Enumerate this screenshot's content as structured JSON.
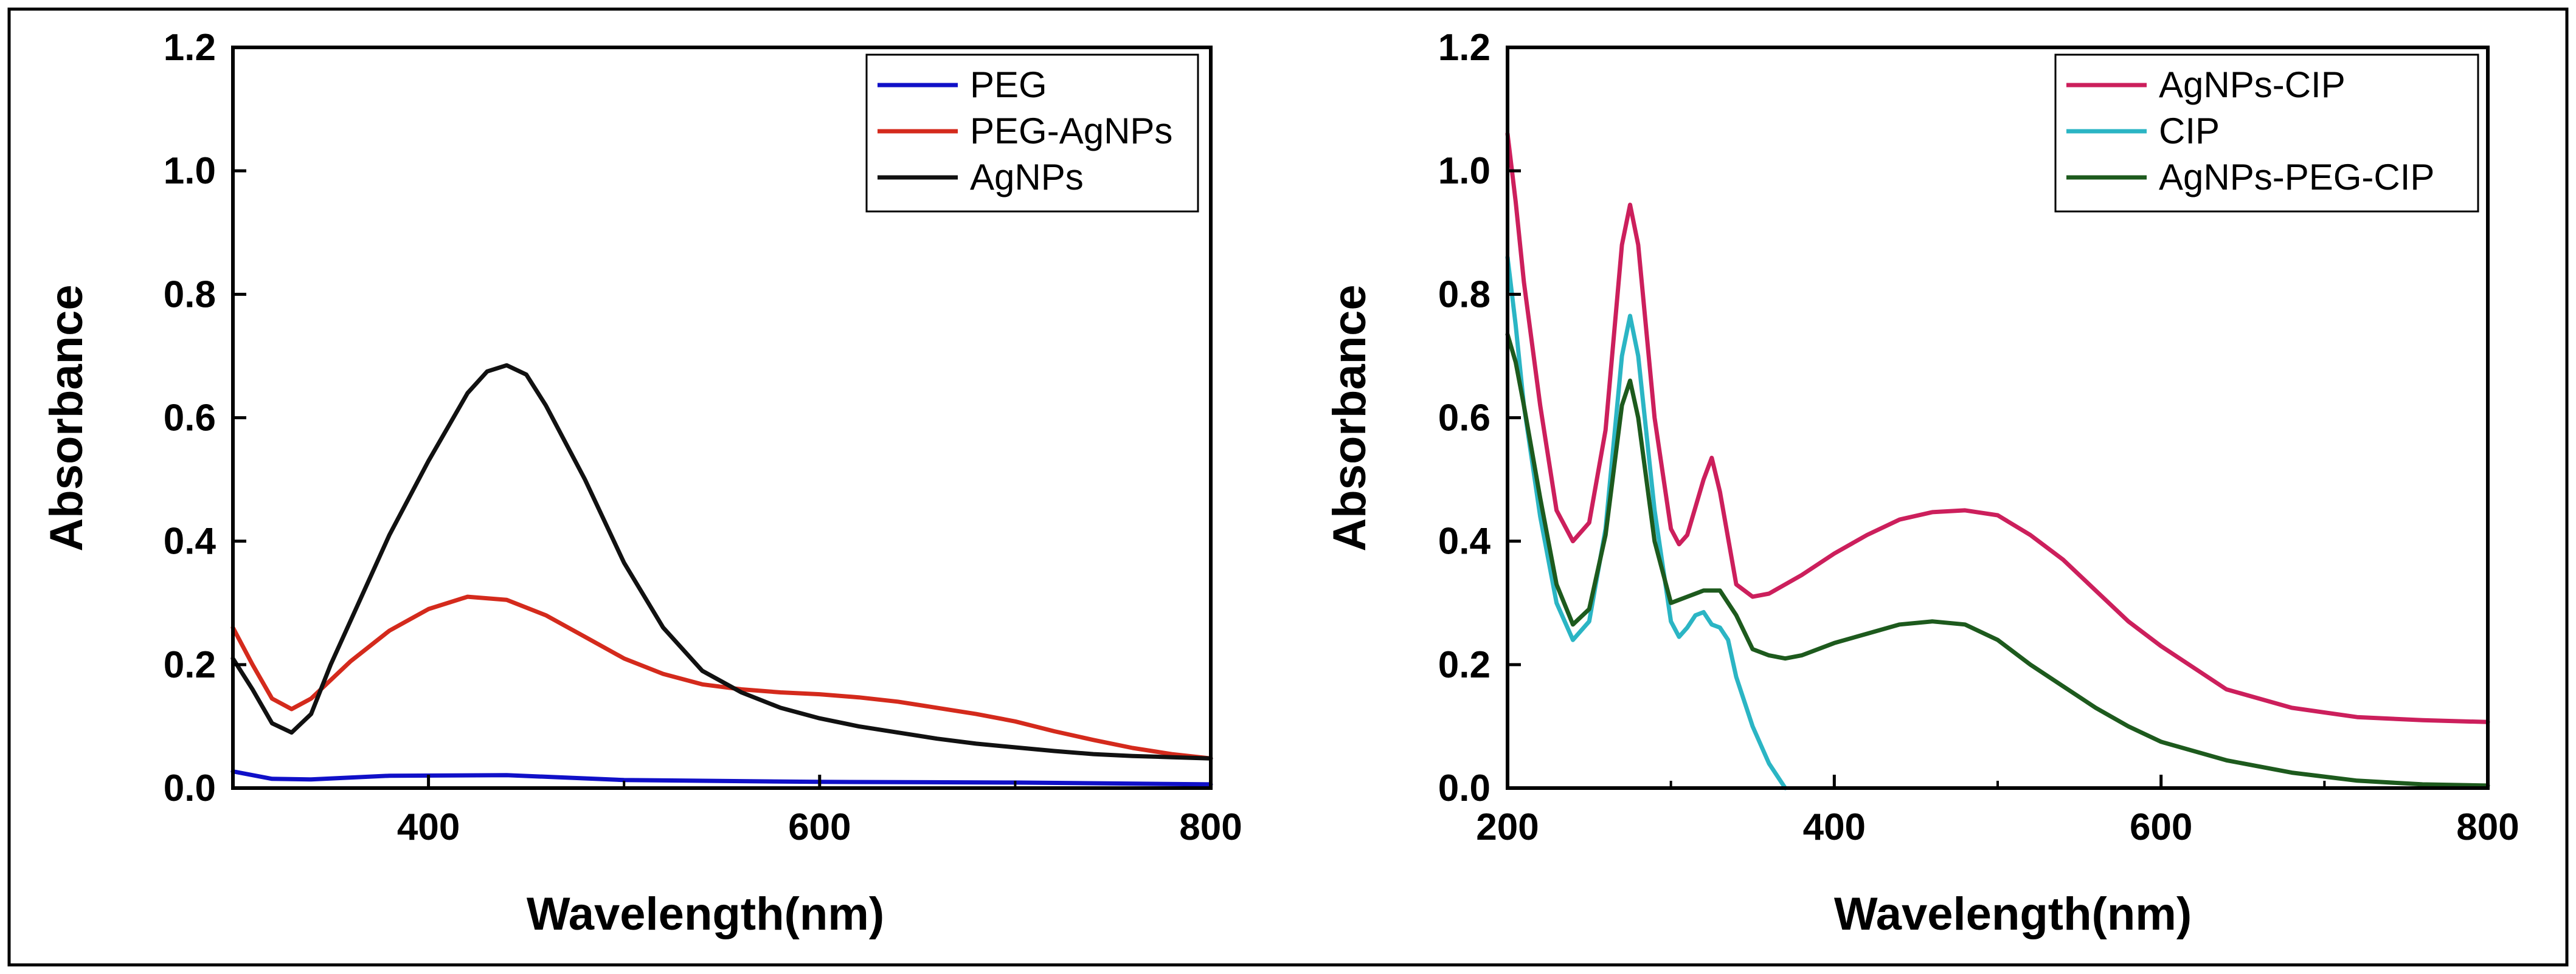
{
  "chart_data": [
    {
      "type": "line",
      "title": "",
      "xlabel": "Wavelength(nm)",
      "ylabel": "Absorbance",
      "xlim": [
        300,
        800
      ],
      "ylim": [
        0,
        1.2
      ],
      "xticks": [
        400,
        600,
        800
      ],
      "yticks": [
        0.0,
        0.2,
        0.4,
        0.6,
        0.8,
        1.0,
        1.2
      ],
      "legend_position": "top-right",
      "series": [
        {
          "name": "PEG",
          "color": "#1010c8",
          "x": [
            300,
            320,
            340,
            380,
            440,
            500,
            600,
            700,
            800
          ],
          "values": [
            0.027,
            0.015,
            0.014,
            0.02,
            0.021,
            0.013,
            0.01,
            0.009,
            0.006
          ]
        },
        {
          "name": "PEG-AgNPs",
          "color": "#d42a1c",
          "x": [
            300,
            310,
            320,
            330,
            340,
            360,
            380,
            400,
            420,
            440,
            460,
            480,
            500,
            520,
            540,
            560,
            580,
            600,
            620,
            640,
            660,
            680,
            700,
            720,
            740,
            760,
            780,
            800
          ],
          "values": [
            0.26,
            0.2,
            0.145,
            0.128,
            0.145,
            0.205,
            0.255,
            0.29,
            0.31,
            0.305,
            0.28,
            0.245,
            0.21,
            0.185,
            0.168,
            0.16,
            0.155,
            0.152,
            0.147,
            0.14,
            0.13,
            0.12,
            0.108,
            0.092,
            0.078,
            0.065,
            0.055,
            0.048
          ]
        },
        {
          "name": "AgNPs",
          "color": "#111111",
          "x": [
            300,
            310,
            320,
            330,
            340,
            350,
            360,
            380,
            400,
            420,
            430,
            440,
            450,
            460,
            480,
            500,
            520,
            540,
            560,
            580,
            600,
            620,
            640,
            660,
            680,
            700,
            720,
            740,
            760,
            780,
            800
          ],
          "values": [
            0.21,
            0.16,
            0.105,
            0.09,
            0.12,
            0.2,
            0.27,
            0.41,
            0.53,
            0.64,
            0.675,
            0.685,
            0.67,
            0.62,
            0.5,
            0.365,
            0.26,
            0.19,
            0.155,
            0.13,
            0.113,
            0.1,
            0.09,
            0.08,
            0.072,
            0.066,
            0.06,
            0.055,
            0.052,
            0.05,
            0.048
          ]
        }
      ]
    },
    {
      "type": "line",
      "title": "",
      "xlabel": "Wavelength(nm)",
      "ylabel": "Absorbance",
      "xlim": [
        200,
        800
      ],
      "ylim": [
        0,
        1.2
      ],
      "xticks": [
        200,
        400,
        600,
        800
      ],
      "yticks": [
        0.0,
        0.2,
        0.4,
        0.6,
        0.8,
        1.0,
        1.2
      ],
      "legend_position": "top-right",
      "series": [
        {
          "name": "AgNPs-CIP",
          "color": "#cc1f5c",
          "x": [
            200,
            205,
            210,
            220,
            230,
            240,
            250,
            260,
            270,
            275,
            280,
            290,
            300,
            305,
            310,
            320,
            325,
            330,
            340,
            350,
            360,
            380,
            400,
            420,
            440,
            460,
            480,
            500,
            520,
            540,
            560,
            580,
            600,
            640,
            680,
            720,
            760,
            800
          ],
          "values": [
            1.06,
            0.95,
            0.82,
            0.62,
            0.45,
            0.4,
            0.43,
            0.58,
            0.88,
            0.945,
            0.88,
            0.6,
            0.42,
            0.395,
            0.41,
            0.5,
            0.535,
            0.48,
            0.33,
            0.31,
            0.315,
            0.345,
            0.38,
            0.41,
            0.435,
            0.447,
            0.45,
            0.442,
            0.41,
            0.37,
            0.32,
            0.27,
            0.23,
            0.16,
            0.13,
            0.115,
            0.11,
            0.107
          ]
        },
        {
          "name": "CIP",
          "color": "#2bb5c4",
          "x": [
            200,
            205,
            210,
            220,
            230,
            240,
            250,
            260,
            270,
            275,
            280,
            290,
            300,
            305,
            310,
            315,
            320,
            325,
            330,
            335,
            340,
            350,
            360,
            370
          ],
          "values": [
            0.86,
            0.75,
            0.62,
            0.44,
            0.3,
            0.24,
            0.27,
            0.42,
            0.7,
            0.765,
            0.7,
            0.45,
            0.27,
            0.245,
            0.26,
            0.28,
            0.285,
            0.265,
            0.26,
            0.24,
            0.18,
            0.1,
            0.04,
            0.0
          ]
        },
        {
          "name": "AgNPs-PEG-CIP",
          "color": "#1d5a1d",
          "x": [
            200,
            205,
            210,
            220,
            230,
            240,
            250,
            260,
            270,
            275,
            280,
            290,
            300,
            310,
            320,
            330,
            340,
            350,
            360,
            370,
            380,
            400,
            420,
            440,
            460,
            480,
            500,
            520,
            540,
            560,
            580,
            600,
            640,
            680,
            720,
            760,
            800
          ],
          "values": [
            0.735,
            0.69,
            0.62,
            0.47,
            0.33,
            0.265,
            0.29,
            0.41,
            0.62,
            0.66,
            0.6,
            0.4,
            0.3,
            0.31,
            0.32,
            0.32,
            0.28,
            0.225,
            0.215,
            0.21,
            0.215,
            0.235,
            0.25,
            0.265,
            0.27,
            0.265,
            0.24,
            0.2,
            0.165,
            0.13,
            0.1,
            0.075,
            0.045,
            0.025,
            0.012,
            0.006,
            0.004
          ]
        }
      ]
    }
  ]
}
